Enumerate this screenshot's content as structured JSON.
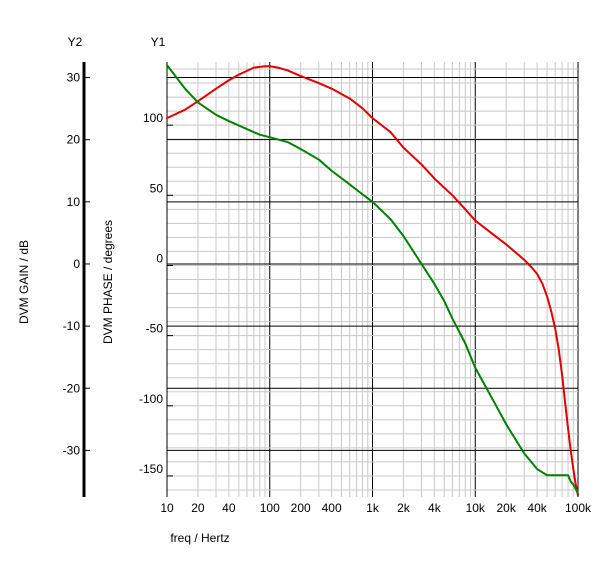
{
  "chart_data": {
    "type": "line",
    "xscale": "log",
    "xlabel": "freq / Hertz",
    "xlim": [
      10,
      100000
    ],
    "xticks": [
      10,
      20,
      40,
      100,
      200,
      400,
      1000,
      2000,
      4000,
      10000,
      20000,
      40000,
      100000
    ],
    "xtick_labels": [
      "10",
      "20",
      "40",
      "100",
      "200",
      "400",
      "1k",
      "2k",
      "4k",
      "10k",
      "20k",
      "40k",
      "100k"
    ],
    "y1": {
      "name": "Y1",
      "label": "DVM PHASE / degrees",
      "ylim": [
        -165,
        145
      ],
      "ticks": [
        -150,
        -100,
        -50,
        0,
        50,
        100
      ],
      "tick_labels": [
        "-150",
        "-100",
        "-50",
        "0",
        "50",
        "100"
      ]
    },
    "y2": {
      "name": "Y2",
      "label": "DVM GAIN / dB",
      "ylim": [
        -37.5,
        32.5
      ],
      "ticks": [
        -30,
        -20,
        -10,
        0,
        10,
        20,
        30
      ],
      "tick_labels": [
        "-30",
        "-20",
        "-10",
        "0",
        "10",
        "20",
        "30"
      ]
    },
    "grid": true,
    "series": [
      {
        "axis": "y1",
        "color": "#e00000",
        "x": [
          10,
          15,
          20,
          25,
          30,
          40,
          50,
          70,
          90,
          100,
          120,
          150,
          200,
          300,
          400,
          600,
          800,
          1000,
          1500,
          2000,
          3000,
          4000,
          6000,
          8000,
          10000,
          15000,
          20000,
          25000,
          30000,
          35000,
          40000,
          45000,
          50000,
          55000,
          60000,
          65000,
          70000,
          75000,
          80000,
          85000,
          90000,
          95000,
          100000
        ],
        "y": [
          105,
          111,
          117,
          122,
          126,
          132,
          136,
          141,
          142,
          142,
          141,
          139,
          135,
          130,
          126,
          119,
          112,
          105,
          95,
          84,
          72,
          62,
          50,
          40,
          32,
          22,
          15,
          9,
          4,
          -1,
          -6,
          -13,
          -22,
          -33,
          -45,
          -60,
          -78,
          -98,
          -116,
          -132,
          -145,
          -156,
          -164
        ]
      },
      {
        "axis": "y2",
        "color": "#008000",
        "x": [
          10,
          15,
          20,
          30,
          40,
          60,
          80,
          100,
          150,
          200,
          300,
          400,
          600,
          800,
          1000,
          1500,
          2000,
          3000,
          4000,
          5000,
          6000,
          8000,
          10000,
          15000,
          20000,
          30000,
          40000,
          50000,
          60000,
          70000,
          75000,
          80000,
          85000,
          90000,
          95000,
          100000
        ],
        "y": [
          32,
          28.2,
          26,
          24,
          23,
          21.7,
          20.8,
          20.4,
          19.6,
          18.5,
          16.8,
          15,
          12.8,
          11.2,
          10,
          7.2,
          4.5,
          0,
          -3.2,
          -6,
          -8.8,
          -12.8,
          -16.7,
          -22,
          -25.8,
          -30.5,
          -33,
          -34,
          -34,
          -34,
          -34,
          -34,
          -35,
          -35.5,
          -36.2,
          -37
        ]
      }
    ]
  }
}
